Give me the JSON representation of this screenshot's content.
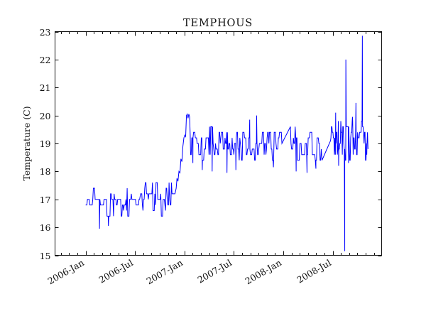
{
  "chart_data": {
    "type": "line",
    "title": "TEMPHOUS",
    "xlabel": "",
    "ylabel": "Temperature (C)",
    "line_color": "#0000ff",
    "background_color": "#ffffff",
    "grid": false,
    "legend": "none",
    "xlim": [
      2005.69,
      2008.995
    ],
    "ylim": [
      15,
      23
    ],
    "yticks": [
      15,
      16,
      17,
      18,
      19,
      20,
      21,
      22,
      23
    ],
    "xticks_major": [
      {
        "t": 2006.0,
        "label": "2006-Jan"
      },
      {
        "t": 2006.5,
        "label": "2006-Jul"
      },
      {
        "t": 2007.0,
        "label": "2007-Jan"
      },
      {
        "t": 2007.5,
        "label": "2007-Jul"
      },
      {
        "t": 2008.0,
        "label": "2008-Jan"
      },
      {
        "t": 2008.5,
        "label": "2008-Jul"
      }
    ],
    "xticks_minor_months": {
      "start": [
        2005,
        10
      ],
      "end": [
        2008,
        12
      ]
    },
    "x_tick_label_rotation_deg": -30,
    "seed": 123456789,
    "series_build": [
      {
        "op": "noise",
        "t0": 2006.0,
        "t1": 2006.55,
        "dt": 0.006,
        "hold": [
          1,
          3
        ],
        "levels": [
          16.4,
          16.4,
          16.6,
          16.8,
          16.8,
          16.8,
          17.0,
          17.0,
          17.0,
          17.0,
          17.2,
          17.2,
          17.2,
          17.4
        ]
      },
      {
        "op": "path",
        "pts": [
          [
            2006.14,
            15.95
          ],
          [
            2006.23,
            16.05
          ]
        ]
      },
      {
        "op": "noise",
        "t0": 2006.556,
        "t1": 2006.91,
        "dt": 0.006,
        "hold": [
          1,
          3
        ],
        "levels": [
          16.4,
          16.6,
          16.8,
          16.8,
          17.0,
          17.0,
          17.2,
          17.2,
          17.2,
          17.4,
          17.4,
          17.6,
          17.6
        ]
      },
      {
        "op": "path",
        "pts": [
          [
            2006.916,
            17.4
          ],
          [
            2006.924,
            17.75
          ],
          [
            2006.934,
            17.65
          ],
          [
            2006.944,
            18.0
          ],
          [
            2006.954,
            17.95
          ],
          [
            2006.964,
            18.45
          ],
          [
            2006.974,
            18.35
          ],
          [
            2006.984,
            18.9
          ],
          [
            2006.994,
            19.2
          ],
          [
            2007.004,
            19.3
          ],
          [
            2007.012,
            19.25
          ],
          [
            2007.02,
            20.0
          ],
          [
            2007.028,
            20.05
          ],
          [
            2007.036,
            19.9
          ],
          [
            2007.044,
            20.05
          ],
          [
            2007.052,
            19.95
          ],
          [
            2007.058,
            19.3
          ]
        ]
      },
      {
        "op": "noise",
        "t0": 2007.062,
        "t1": 2007.983,
        "dt": 0.006,
        "hold": [
          1,
          3
        ],
        "levels": [
          18.4,
          18.6,
          18.6,
          18.8,
          18.8,
          18.8,
          19.0,
          19.0,
          19.0,
          19.0,
          19.2,
          19.2,
          19.2,
          19.4,
          19.4,
          19.6
        ]
      },
      {
        "op": "path",
        "pts": [
          [
            2007.085,
            18.3
          ],
          [
            2007.18,
            18.05
          ],
          [
            2007.28,
            18.0
          ],
          [
            2007.43,
            17.95
          ],
          [
            2007.52,
            18.05
          ],
          [
            2007.66,
            19.85
          ],
          [
            2007.73,
            20.0
          ],
          [
            2007.9,
            18.15
          ]
        ]
      },
      {
        "op": "path",
        "pts": [
          [
            2007.986,
            19.0
          ],
          [
            2008.072,
            19.6
          ]
        ]
      },
      {
        "op": "noise",
        "t0": 2008.078,
        "t1": 2008.388,
        "dt": 0.006,
        "hold": [
          1,
          3
        ],
        "levels": [
          18.4,
          18.6,
          18.6,
          18.8,
          18.8,
          19.0,
          19.0,
          19.0,
          19.2,
          19.2,
          19.2,
          19.4,
          19.4,
          19.6
        ]
      },
      {
        "op": "path",
        "pts": [
          [
            2008.13,
            18.0
          ],
          [
            2008.24,
            17.95
          ],
          [
            2008.33,
            18.1
          ]
        ]
      },
      {
        "op": "path",
        "pts": [
          [
            2008.392,
            18.4
          ],
          [
            2008.478,
            19.1
          ]
        ]
      },
      {
        "op": "noise",
        "t0": 2008.482,
        "t1": 2008.855,
        "dt": 0.005,
        "hold": [
          1,
          2
        ],
        "levels": [
          18.4,
          18.6,
          18.8,
          19.0,
          19.0,
          19.2,
          19.2,
          19.4,
          19.4,
          19.6,
          19.6,
          19.8
        ]
      },
      {
        "op": "path",
        "pts": [
          [
            2008.53,
            20.1
          ],
          [
            2008.56,
            18.2
          ],
          [
            2008.622,
            15.15
          ],
          [
            2008.633,
            22.0
          ],
          [
            2008.66,
            18.3
          ],
          [
            2008.7,
            19.95
          ],
          [
            2008.735,
            20.45
          ],
          [
            2008.8,
            22.85
          ],
          [
            2008.845,
            18.6
          ],
          [
            2008.857,
            18.8
          ]
        ]
      }
    ],
    "notable_values": {
      "band_2006_mean": 17.0,
      "band_2006_range": [
        16.4,
        17.6
      ],
      "deep_dip_2006": 15.95,
      "step_change": "2006-Dec to 2007-Jan, 17 -> 19",
      "peak_2007_jan": 20.05,
      "band_2007_2008_mean": 19.0,
      "band_2007_2008_range": [
        18.4,
        19.6
      ],
      "spike_2008_sep_high": 22.0,
      "spike_2008_sep_low": 15.15,
      "spike_2008_nov_high": 22.85
    }
  }
}
